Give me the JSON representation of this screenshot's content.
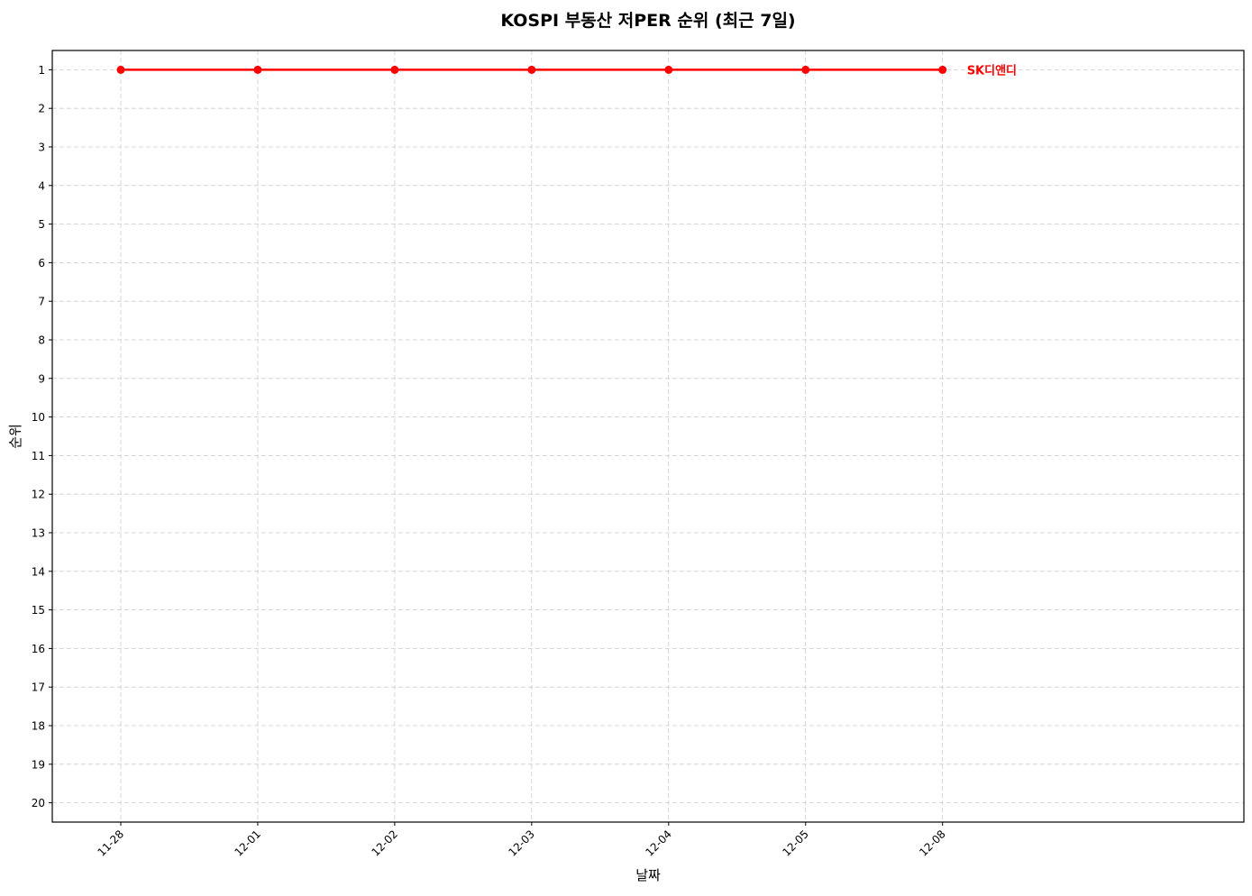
{
  "chart_data": {
    "type": "line",
    "title": "KOSPI 부동산 저PER 순위 (최근 7일)",
    "xlabel": "날짜",
    "ylabel": "순위",
    "categories": [
      "11-28",
      "12-01",
      "12-02",
      "12-03",
      "12-04",
      "12-05",
      "12-08"
    ],
    "yticks": [
      1,
      2,
      3,
      4,
      5,
      6,
      7,
      8,
      9,
      10,
      11,
      12,
      13,
      14,
      15,
      16,
      17,
      18,
      19,
      20
    ],
    "ylim": [
      20.5,
      0.5
    ],
    "y_inverted": true,
    "grid": true,
    "series": [
      {
        "name": "SK디앤디",
        "values": [
          1,
          1,
          1,
          1,
          1,
          1,
          1
        ],
        "color": "#ff0000",
        "marker": "circle"
      }
    ]
  }
}
